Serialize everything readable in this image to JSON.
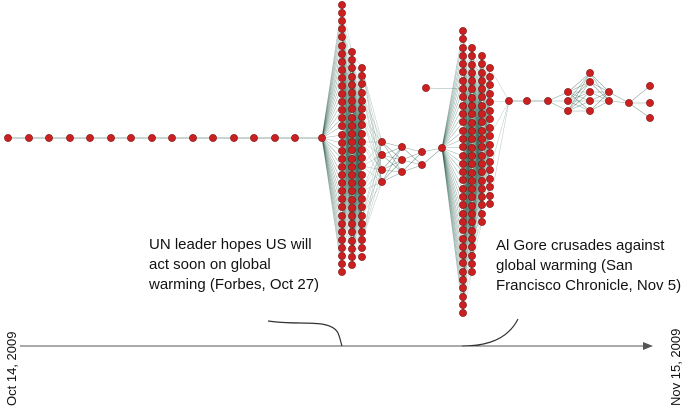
{
  "timeline": {
    "start_label": "Oct 14, 2009",
    "end_label": "Nov 15, 2009"
  },
  "annotations": {
    "left": "UN leader hopes US will\nact soon on global\nwarming (Forbes, Oct 27)",
    "right": "Al Gore crusades against\nglobal warming (San\nFrancisco Chronicle, Nov 5)"
  },
  "colors": {
    "node": "#cc1f1f",
    "node_edge": "#7a0f0f",
    "edge": "#2f5f4f",
    "axis": "#555555"
  }
}
